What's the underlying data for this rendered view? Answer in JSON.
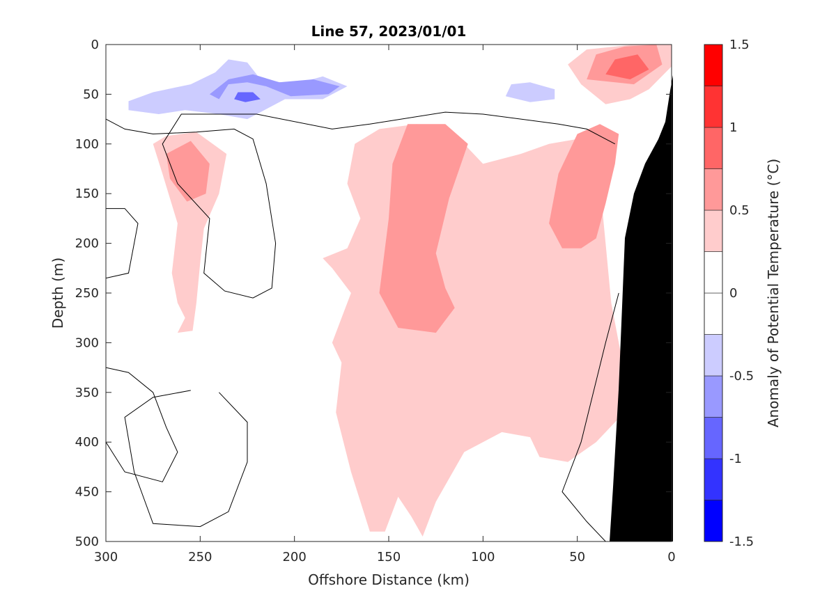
{
  "chart_data": {
    "type": "heatmap",
    "subtype": "filled-contour section",
    "title": "Line 57, 2023/01/01",
    "xlabel": "Offshore Distance (km)",
    "ylabel": "Depth (m)",
    "x_reversed": true,
    "y_reversed": true,
    "xlim": [
      0,
      300
    ],
    "ylim": [
      0,
      500
    ],
    "xticks": [
      "300",
      "250",
      "200",
      "150",
      "100",
      "50",
      "0"
    ],
    "yticks": [
      "0",
      "50",
      "100",
      "150",
      "200",
      "250",
      "300",
      "350",
      "400",
      "450",
      "500"
    ],
    "colorbar": {
      "label": "Anomaly of Potential Temperature (°C)",
      "limits": [
        -1.5,
        1.5
      ],
      "tick_labels": [
        "1.5",
        "1",
        "0.5",
        "0",
        "-0.5",
        "-1",
        "-1.5"
      ],
      "levels": [
        -1.5,
        -1.25,
        -1.0,
        -0.75,
        -0.5,
        -0.25,
        0,
        0.25,
        0.5,
        0.75,
        1.0,
        1.25,
        1.5
      ],
      "colors": [
        "#0000ff",
        "#3333ff",
        "#6666ff",
        "#9999ff",
        "#ccccff",
        "#ffffff",
        "#ffffff",
        "#ffcccc",
        "#ff9999",
        "#ff6666",
        "#ff3333",
        "#ff0000"
      ]
    },
    "bathymetry_color": "#000000",
    "regions": [
      {
        "name": "shallow-cold-band",
        "level": -0.25,
        "points": [
          [
            298,
            52
          ],
          [
            288,
            42
          ],
          [
            270,
            40
          ],
          [
            255,
            30
          ],
          [
            237,
            20
          ],
          [
            230,
            3
          ],
          [
            215,
            4
          ],
          [
            207,
            20
          ],
          [
            195,
            28
          ],
          [
            172,
            40
          ],
          [
            153,
            48
          ],
          [
            140,
            40
          ],
          [
            125,
            30
          ],
          [
            100,
            30
          ],
          [
            75,
            45
          ],
          [
            60,
            60
          ],
          [
            100,
            66
          ],
          [
            160,
            68
          ],
          [
            200,
            80
          ],
          [
            225,
            90
          ],
          [
            230,
            115
          ],
          [
            228,
            125
          ],
          [
            236,
            120
          ],
          [
            242,
            95
          ],
          [
            268,
            70
          ],
          [
            290,
            68
          ],
          [
            298,
            65
          ]
        ]
      },
      {
        "name": "cold-core-outer",
        "level": -0.5,
        "points": [
          [
            288,
            57
          ],
          [
            275,
            48
          ],
          [
            255,
            40
          ],
          [
            242,
            28
          ],
          [
            235,
            15
          ],
          [
            225,
            18
          ],
          [
            218,
            35
          ],
          [
            200,
            40
          ],
          [
            185,
            32
          ],
          [
            172,
            42
          ],
          [
            185,
            55
          ],
          [
            205,
            55
          ],
          [
            225,
            75
          ],
          [
            240,
            70
          ],
          [
            258,
            66
          ],
          [
            272,
            70
          ],
          [
            288,
            66
          ]
        ]
      },
      {
        "name": "cold-core-mid",
        "level": -0.75,
        "points": [
          [
            240,
            55
          ],
          [
            235,
            40
          ],
          [
            225,
            38
          ],
          [
            215,
            42
          ],
          [
            202,
            52
          ],
          [
            182,
            50
          ],
          [
            176,
            42
          ],
          [
            190,
            35
          ],
          [
            208,
            38
          ],
          [
            222,
            30
          ],
          [
            235,
            35
          ],
          [
            245,
            50
          ]
        ]
      },
      {
        "name": "cold-core-inner",
        "level": -1.0,
        "points": [
          [
            232,
            55
          ],
          [
            230,
            48
          ],
          [
            222,
            48
          ],
          [
            218,
            55
          ],
          [
            226,
            58
          ]
        ]
      },
      {
        "name": "cold-lens-east",
        "level": -0.5,
        "points": [
          [
            88,
            52
          ],
          [
            85,
            40
          ],
          [
            75,
            38
          ],
          [
            62,
            45
          ],
          [
            62,
            55
          ],
          [
            75,
            58
          ]
        ]
      },
      {
        "name": "nearshore-warm-surface",
        "level": 0.25,
        "points": [
          [
            55,
            20
          ],
          [
            45,
            5
          ],
          [
            20,
            0
          ],
          [
            0,
            0
          ],
          [
            0,
            22
          ],
          [
            12,
            45
          ],
          [
            22,
            55
          ],
          [
            35,
            60
          ],
          [
            48,
            40
          ]
        ]
      },
      {
        "name": "nearshore-warm-mid",
        "level": 0.5,
        "points": [
          [
            45,
            35
          ],
          [
            40,
            10
          ],
          [
            25,
            2
          ],
          [
            8,
            0
          ],
          [
            5,
            20
          ],
          [
            20,
            40
          ]
        ]
      },
      {
        "name": "nearshore-warm-core",
        "level": 0.75,
        "points": [
          [
            35,
            30
          ],
          [
            30,
            15
          ],
          [
            18,
            10
          ],
          [
            12,
            25
          ],
          [
            22,
            35
          ]
        ]
      },
      {
        "name": "offshore-warm-column",
        "level": 0.25,
        "points": [
          [
            275,
            100
          ],
          [
            270,
            130
          ],
          [
            262,
            180
          ],
          [
            265,
            230
          ],
          [
            262,
            260
          ],
          [
            258,
            275
          ],
          [
            262,
            290
          ],
          [
            254,
            288
          ],
          [
            252,
            260
          ],
          [
            250,
            220
          ],
          [
            248,
            185
          ],
          [
            240,
            150
          ],
          [
            236,
            110
          ],
          [
            252,
            88
          ],
          [
            268,
            92
          ]
        ]
      },
      {
        "name": "offshore-warm-core",
        "level": 0.5,
        "points": [
          [
            268,
            110
          ],
          [
            266,
            135
          ],
          [
            257,
            158
          ],
          [
            247,
            150
          ],
          [
            245,
            120
          ],
          [
            255,
            97
          ]
        ]
      },
      {
        "name": "main-warm-body",
        "level": 0.25,
        "points": [
          [
            172,
            140
          ],
          [
            168,
            100
          ],
          [
            155,
            85
          ],
          [
            135,
            80
          ],
          [
            115,
            90
          ],
          [
            100,
            120
          ],
          [
            80,
            110
          ],
          [
            65,
            100
          ],
          [
            50,
            95
          ],
          [
            38,
            140
          ],
          [
            35,
            200
          ],
          [
            32,
            260
          ],
          [
            25,
            330
          ],
          [
            20,
            360
          ],
          [
            30,
            380
          ],
          [
            40,
            400
          ],
          [
            55,
            420
          ],
          [
            70,
            415
          ],
          [
            75,
            395
          ],
          [
            90,
            390
          ],
          [
            110,
            410
          ],
          [
            125,
            460
          ],
          [
            132,
            495
          ],
          [
            138,
            475
          ],
          [
            145,
            455
          ],
          [
            152,
            490
          ],
          [
            160,
            490
          ],
          [
            170,
            430
          ],
          [
            178,
            370
          ],
          [
            175,
            320
          ],
          [
            180,
            300
          ],
          [
            175,
            275
          ],
          [
            170,
            250
          ],
          [
            180,
            225
          ],
          [
            185,
            215
          ],
          [
            172,
            205
          ],
          [
            165,
            175
          ]
        ]
      },
      {
        "name": "main-warm-core",
        "level": 0.5,
        "points": [
          [
            140,
            80
          ],
          [
            120,
            80
          ],
          [
            108,
            100
          ],
          [
            118,
            155
          ],
          [
            125,
            210
          ],
          [
            120,
            245
          ],
          [
            115,
            265
          ],
          [
            125,
            290
          ],
          [
            145,
            285
          ],
          [
            155,
            250
          ],
          [
            150,
            175
          ],
          [
            148,
            120
          ]
        ]
      },
      {
        "name": "shelf-warm-core",
        "level": 0.5,
        "points": [
          [
            65,
            180
          ],
          [
            60,
            130
          ],
          [
            50,
            90
          ],
          [
            38,
            80
          ],
          [
            28,
            90
          ],
          [
            30,
            120
          ],
          [
            35,
            160
          ],
          [
            40,
            195
          ],
          [
            48,
            205
          ],
          [
            58,
            205
          ]
        ]
      }
    ],
    "contour_lines": [
      {
        "name": "zero-line-surface",
        "points": [
          [
            300,
            75
          ],
          [
            290,
            85
          ],
          [
            275,
            90
          ],
          [
            252,
            88
          ],
          [
            232,
            85
          ],
          [
            222,
            95
          ],
          [
            215,
            140
          ],
          [
            210,
            200
          ],
          [
            212,
            245
          ],
          [
            222,
            255
          ],
          [
            237,
            248
          ],
          [
            248,
            230
          ],
          [
            245,
            175
          ],
          [
            262,
            140
          ],
          [
            270,
            100
          ],
          [
            260,
            70
          ],
          [
            220,
            70
          ],
          [
            180,
            85
          ],
          [
            160,
            80
          ],
          [
            120,
            68
          ],
          [
            100,
            70
          ],
          [
            60,
            80
          ],
          [
            45,
            85
          ],
          [
            30,
            100
          ]
        ]
      },
      {
        "name": "zero-line-offshore-west",
        "points": [
          [
            300,
            165
          ],
          [
            290,
            165
          ],
          [
            283,
            180
          ],
          [
            288,
            230
          ],
          [
            300,
            235
          ]
        ]
      },
      {
        "name": "zero-line-deep-west",
        "points": [
          [
            300,
            325
          ],
          [
            288,
            330
          ],
          [
            275,
            350
          ],
          [
            268,
            385
          ],
          [
            262,
            410
          ],
          [
            270,
            440
          ],
          [
            290,
            430
          ],
          [
            300,
            400
          ]
        ]
      },
      {
        "name": "zero-line-deep-eddy",
        "points": [
          [
            240,
            350
          ],
          [
            225,
            380
          ],
          [
            225,
            420
          ],
          [
            235,
            470
          ],
          [
            250,
            485
          ],
          [
            275,
            482
          ],
          [
            285,
            430
          ],
          [
            290,
            375
          ],
          [
            275,
            355
          ],
          [
            255,
            348
          ]
        ]
      },
      {
        "name": "zero-line-nearshore",
        "points": [
          [
            28,
            250
          ],
          [
            35,
            300
          ],
          [
            48,
            400
          ],
          [
            58,
            450
          ],
          [
            45,
            480
          ],
          [
            35,
            500
          ]
        ]
      }
    ]
  }
}
